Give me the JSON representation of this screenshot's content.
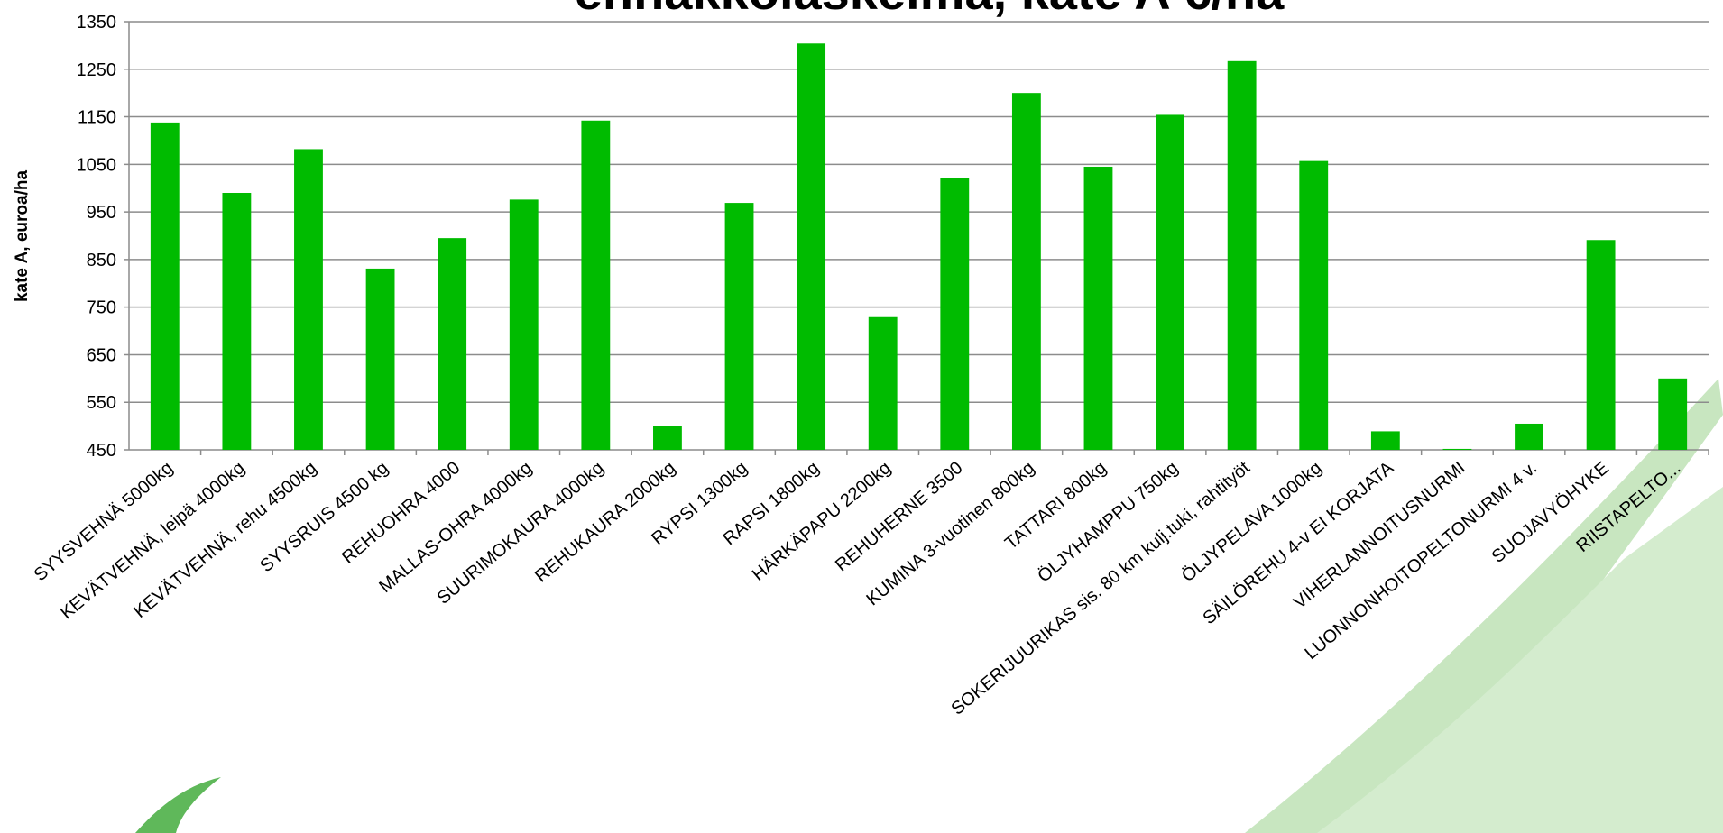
{
  "chart_data": {
    "type": "bar",
    "title": "ennakkolaskelma, kate A €/ha",
    "y_label": "kate A, euroa/ha",
    "categories": [
      "SYYSVEHNÄ 5000kg",
      "KEVÄTVEHNÄ, leipä 4000kg",
      "KEVÄTVEHNÄ, rehu 4500kg",
      "SYYSRUIS 4500 kg",
      "REHUOHRA 4000",
      "MALLAS-OHRA 4000kg",
      "SUURIMOKAURA 4000kg",
      "REHUKAURA 2000kg",
      "RYPSI 1300kg",
      "RAPSI 1800kg",
      "HÄRKÄPAPU 2200kg",
      "REHUHERNE 3500",
      "KUMINA 3-vuotinen 800kg",
      "TATTARI 800kg",
      "ÖLJYHAMPPU 750kg",
      "SOKERIJUURIKAS sis. 80 km kulj.tuki, rahtityöt",
      "ÖLJYPELAVA 1000kg",
      "SÄILÖREHU 4-v EI KORJATA",
      "VIHERLANNOITUSNURMI",
      "LUONNONHOITOPELTONURMI  4 v.",
      "SUOJAVYÖHYKE",
      "RIISTAPELTO..."
    ],
    "values": [
      1138,
      990,
      1082,
      831,
      895,
      976,
      1142,
      501,
      969,
      1304,
      729,
      1022,
      1200,
      1045,
      1154,
      1267,
      1057,
      489,
      452,
      505,
      891,
      600
    ],
    "color": "#00bb00",
    "ylim": [
      450,
      1350
    ],
    "yticks": [
      450,
      550,
      650,
      750,
      850,
      950,
      1050,
      1150,
      1250,
      1350
    ],
    "grid": true
  }
}
